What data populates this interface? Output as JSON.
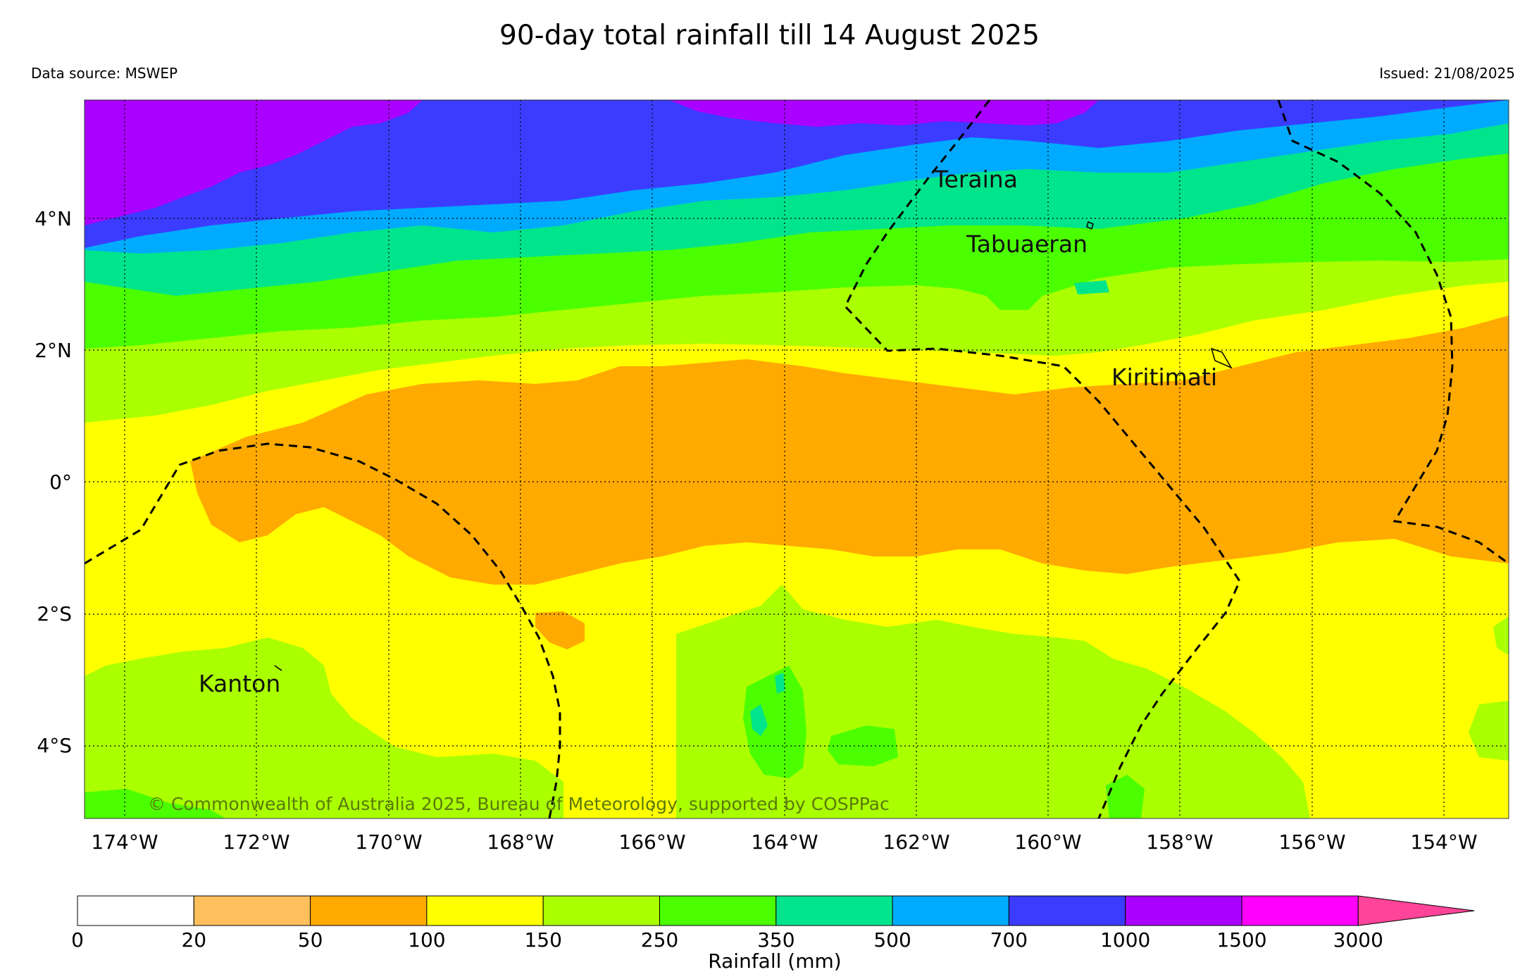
{
  "header": {
    "title": "90-day total rainfall till 14 August 2025",
    "source": "Data source: MSWEP",
    "issued": "Issued: 21/08/2025"
  },
  "map": {
    "lon_labels": [
      "174°W",
      "172°W",
      "170°W",
      "168°W",
      "166°W",
      "164°W",
      "162°W",
      "160°W",
      "158°W",
      "156°W",
      "154°W"
    ],
    "lat_labels": [
      "4°N",
      "2°N",
      "0°",
      "2°S",
      "4°S"
    ],
    "places": {
      "teraina": "Teraina",
      "tabuaeran": "Tabuaeran",
      "kiritimati": "Kiritimati",
      "kanton": "Kanton"
    },
    "copyright": "© Commonwealth of Australia 2025, Bureau of Meteorology, supported by COSPPac"
  },
  "colorbar": {
    "label": "Rainfall (mm)",
    "ticks": [
      "0",
      "20",
      "50",
      "100",
      "150",
      "250",
      "350",
      "500",
      "700",
      "1000",
      "1500",
      "3000"
    ],
    "colors": [
      "#ffffff",
      "#ffbf5c",
      "#ffaa00",
      "#ffff00",
      "#aaff00",
      "#4cff00",
      "#00e58c",
      "#00aaff",
      "#3c3cff",
      "#aa00ff",
      "#ff00ff",
      "#ff4499"
    ]
  }
}
